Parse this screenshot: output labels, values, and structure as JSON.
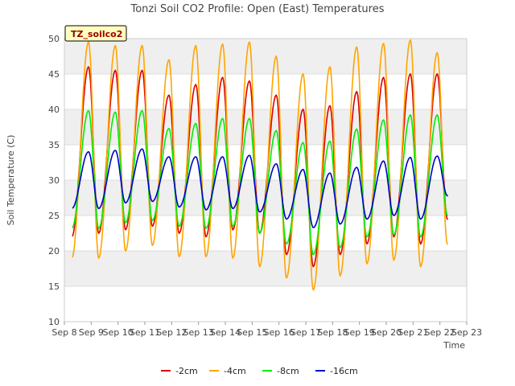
{
  "chart_data": {
    "type": "line",
    "title": "Tonzi Soil CO2 Profile: Open (East) Temperatures",
    "xlabel": "Time",
    "ylabel": "Soil Temperature (C)",
    "station_label": "TZ_soilco2",
    "xlim": [
      8,
      23
    ],
    "ylim": [
      10,
      50
    ],
    "x_ticks": [
      {
        "value": 8,
        "label": "Sep 8"
      },
      {
        "value": 9,
        "label": "Sep 9"
      },
      {
        "value": 10,
        "label": "Sep 10"
      },
      {
        "value": 11,
        "label": "Sep 11"
      },
      {
        "value": 12,
        "label": "Sep 12"
      },
      {
        "value": 13,
        "label": "Sep 13"
      },
      {
        "value": 14,
        "label": "Sep 14"
      },
      {
        "value": 15,
        "label": "Sep 15"
      },
      {
        "value": 16,
        "label": "Sep 16"
      },
      {
        "value": 17,
        "label": "Sep 17"
      },
      {
        "value": 18,
        "label": "Sep 18"
      },
      {
        "value": 19,
        "label": "Sep 19"
      },
      {
        "value": 20,
        "label": "Sep 20"
      },
      {
        "value": 21,
        "label": "Sep 21"
      },
      {
        "value": 22,
        "label": "Sep 22"
      },
      {
        "value": 23,
        "label": "Sep 23"
      }
    ],
    "y_ticks": [
      10,
      15,
      20,
      25,
      30,
      35,
      40,
      45,
      50
    ],
    "grid": true,
    "legend_position": "bottom",
    "series": [
      {
        "name": "-2cm",
        "color": "#dd0000",
        "daily_min": [
          22.0,
          22.5,
          23.0,
          23.5,
          22.5,
          22.0,
          23.0,
          22.5,
          19.5,
          17.8,
          19.5,
          21.0,
          22.0,
          21.0,
          24.5
        ],
        "daily_max": [
          46.0,
          45.5,
          45.5,
          42.0,
          43.5,
          44.5,
          44.0,
          42.0,
          40.0,
          40.5,
          42.5,
          44.5,
          45.0,
          45.0
        ]
      },
      {
        "name": "-4cm",
        "color": "#ffa500",
        "daily_min": [
          19.0,
          19.0,
          20.0,
          20.8,
          19.2,
          19.2,
          19.0,
          17.8,
          16.2,
          14.5,
          16.5,
          18.2,
          18.7,
          17.8,
          21.0
        ],
        "daily_max": [
          49.5,
          49.0,
          49.0,
          47.0,
          49.0,
          49.2,
          49.5,
          47.5,
          45.0,
          46.0,
          48.8,
          49.3,
          49.8,
          48.0
        ]
      },
      {
        "name": "-8cm",
        "color": "#00ee00",
        "daily_min": [
          23.2,
          23.2,
          24.0,
          24.3,
          23.5,
          23.2,
          23.5,
          22.5,
          21.0,
          19.5,
          20.5,
          22.0,
          22.3,
          22.0,
          25.0
        ],
        "daily_max": [
          39.8,
          39.6,
          39.8,
          37.3,
          38.0,
          38.7,
          38.7,
          37.0,
          35.3,
          35.5,
          37.2,
          38.5,
          39.2,
          39.2
        ]
      },
      {
        "name": "-16cm",
        "color": "#0000cc",
        "daily_min": [
          26.0,
          26.0,
          26.8,
          27.0,
          26.2,
          25.8,
          26.0,
          25.5,
          24.5,
          23.3,
          23.8,
          24.5,
          25.0,
          24.5,
          27.8
        ],
        "daily_max": [
          34.0,
          34.2,
          34.4,
          33.3,
          33.3,
          33.3,
          33.5,
          32.3,
          31.5,
          31.0,
          31.8,
          32.7,
          33.2,
          33.4
        ]
      }
    ]
  }
}
